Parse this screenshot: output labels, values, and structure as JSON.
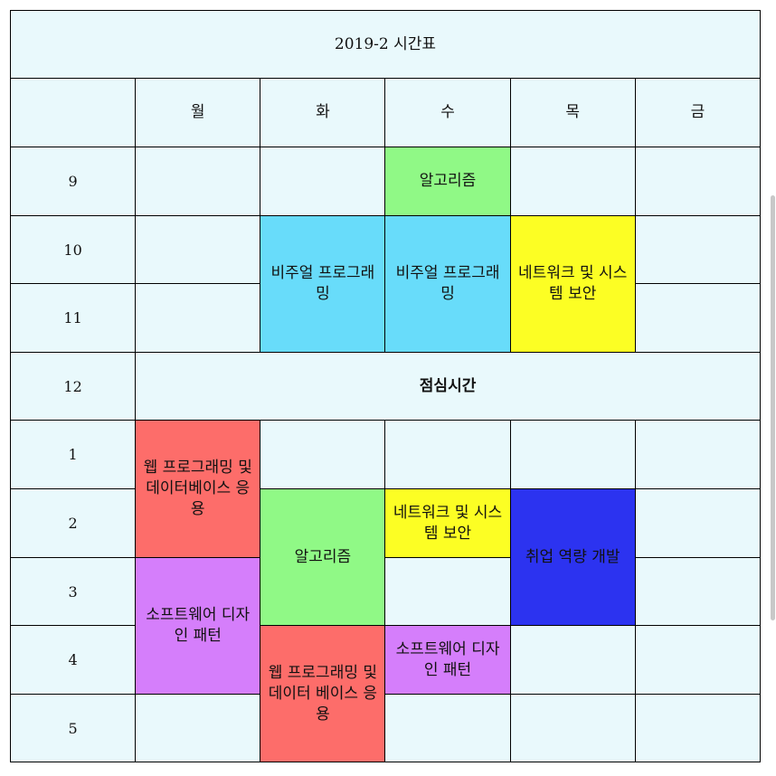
{
  "title": "2019-2 시간표",
  "days": [
    "월",
    "화",
    "수",
    "목",
    "금"
  ],
  "periods": [
    "9",
    "10",
    "11",
    "12",
    "1",
    "2",
    "3",
    "4",
    "5"
  ],
  "lunch": "점심시간",
  "classes": {
    "wed_9": "알고리즘",
    "tue_10": "비주얼 프로그래밍",
    "wed_10": "비주얼 프로그래밍",
    "thu_10": "네트워크 및 시스템 보안",
    "mon_1": "웹 프로그래밍 및 데이터베이스 응용",
    "tue_2": "알고리즘",
    "wed_2": "네트워크 및 시스템 보안",
    "thu_2": "취업 역량 개발",
    "mon_3": "소프트웨어 디자인 패턴",
    "wed_4": "소프트웨어 디자인 패턴",
    "tue_4": "웹 프로그래밍 및 데이터 베이스 응용"
  },
  "colors": {
    "cell_bg": "#e9f9fc",
    "algorithm": "#90f986",
    "visual_programming": "#68dcfa",
    "network_security": "#fcfe24",
    "web_programming": "#fd6d6a",
    "design_pattern": "#d57efb",
    "career_development": "#2c33f0"
  }
}
